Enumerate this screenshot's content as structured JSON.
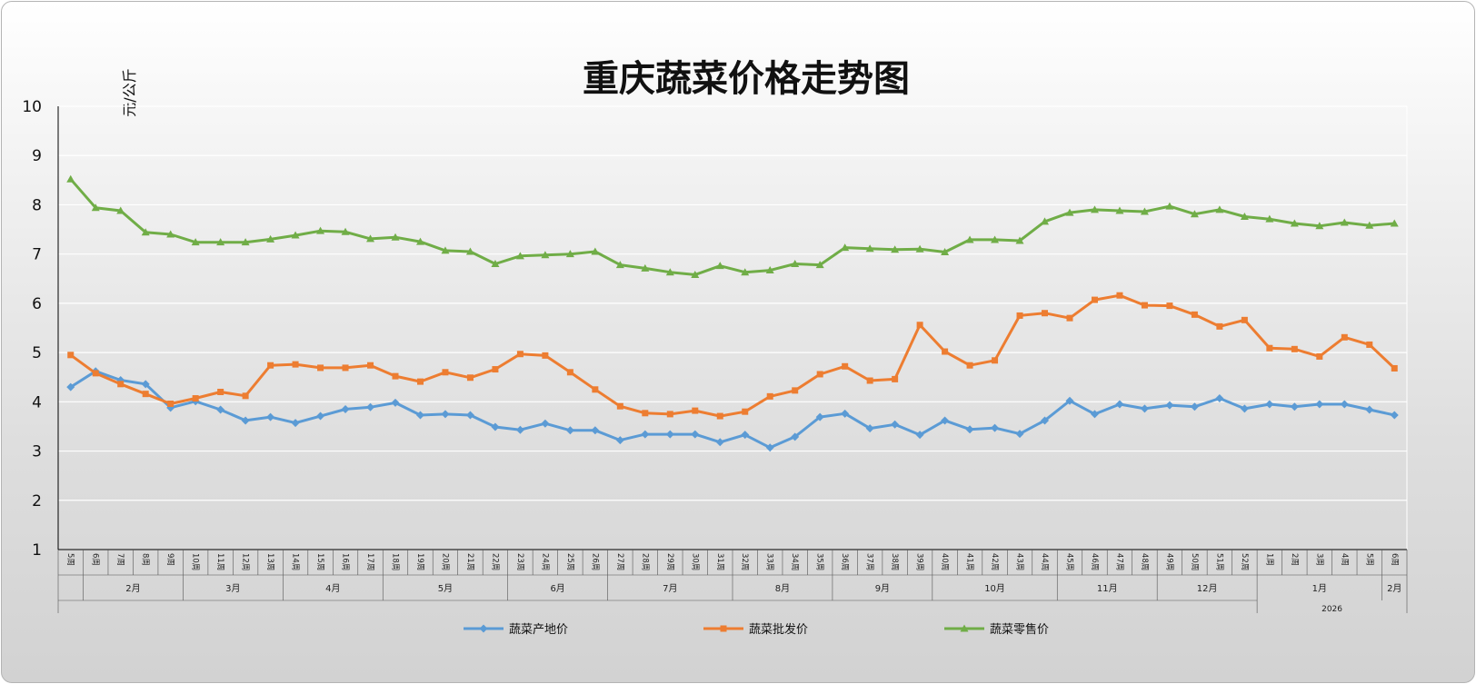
{
  "chart_data": {
    "type": "line",
    "title": "重庆蔬菜价格走势图",
    "ylabel": "元/公斤",
    "xlabel": "",
    "ylim": [
      1,
      10
    ],
    "yticks": [
      1,
      2,
      3,
      4,
      5,
      6,
      7,
      8,
      9,
      10
    ],
    "grid": true,
    "legend_position": "bottom",
    "weeks": [
      "5周",
      "6周",
      "7周",
      "8周",
      "9周",
      "10周",
      "11周",
      "12周",
      "13周",
      "14周",
      "15周",
      "16周",
      "17周",
      "18周",
      "19周",
      "20周",
      "21周",
      "22周",
      "23周",
      "24周",
      "25周",
      "26周",
      "27周",
      "28周",
      "29周",
      "30周",
      "31周",
      "32周",
      "33周",
      "34周",
      "35周",
      "36周",
      "37周",
      "38周",
      "39周",
      "40周",
      "41周",
      "42周",
      "43周",
      "44周",
      "45周",
      "46周",
      "47周",
      "48周",
      "49周",
      "50周",
      "51周",
      "52周",
      "1周",
      "2周",
      "3周",
      "4周",
      "5周",
      "6周"
    ],
    "months": [
      {
        "label": "2月",
        "start": 1,
        "end": 4
      },
      {
        "label": "3月",
        "start": 5,
        "end": 8
      },
      {
        "label": "4月",
        "start": 9,
        "end": 12
      },
      {
        "label": "5月",
        "start": 13,
        "end": 17
      },
      {
        "label": "6月",
        "start": 18,
        "end": 21
      },
      {
        "label": "7月",
        "start": 22,
        "end": 26
      },
      {
        "label": "8月",
        "start": 27,
        "end": 30
      },
      {
        "label": "9月",
        "start": 31,
        "end": 34
      },
      {
        "label": "10月",
        "start": 35,
        "end": 39
      },
      {
        "label": "11月",
        "start": 40,
        "end": 43
      },
      {
        "label": "12月",
        "start": 44,
        "end": 47
      },
      {
        "label": "1月",
        "start": 48,
        "end": 52
      },
      {
        "label": "2月",
        "start": 53,
        "end": 53
      }
    ],
    "years": [
      {
        "label": "2026",
        "start": 48,
        "end": 53
      }
    ],
    "series": [
      {
        "name": "蔬菜产地价",
        "color": "#5b9bd5",
        "marker": "diamond",
        "values": [
          4.3,
          4.62,
          4.44,
          4.36,
          3.88,
          4.01,
          3.84,
          3.62,
          3.69,
          3.57,
          3.71,
          3.85,
          3.89,
          3.98,
          3.73,
          3.75,
          3.73,
          3.49,
          3.43,
          3.56,
          3.42,
          3.42,
          3.22,
          3.34,
          3.34,
          3.34,
          3.18,
          3.33,
          3.07,
          3.29,
          3.69,
          3.76,
          3.46,
          3.54,
          3.33,
          3.62,
          3.44,
          3.47,
          3.35,
          3.62,
          4.02,
          3.75,
          3.95,
          3.86,
          3.93,
          3.9,
          4.07,
          3.86,
          3.95,
          3.9,
          3.95,
          3.95,
          3.84,
          3.73
        ]
      },
      {
        "name": "蔬菜批发价",
        "color": "#ed7d31",
        "marker": "square",
        "values": [
          4.95,
          4.58,
          4.36,
          4.16,
          3.96,
          4.07,
          4.2,
          4.12,
          4.74,
          4.76,
          4.69,
          4.69,
          4.74,
          4.52,
          4.41,
          4.6,
          4.49,
          4.66,
          4.97,
          4.94,
          4.6,
          4.25,
          3.91,
          3.77,
          3.75,
          3.82,
          3.71,
          3.8,
          4.11,
          4.23,
          4.56,
          4.72,
          4.43,
          4.46,
          5.56,
          5.02,
          4.74,
          4.84,
          5.75,
          5.8,
          5.7,
          6.07,
          6.16,
          5.96,
          5.95,
          5.77,
          5.53,
          5.66,
          5.09,
          5.07,
          4.92,
          5.31,
          5.16,
          4.68
        ]
      },
      {
        "name": "蔬菜零售价",
        "color": "#70ad47",
        "marker": "triangle",
        "values": [
          8.52,
          7.94,
          7.88,
          7.44,
          7.4,
          7.24,
          7.24,
          7.24,
          7.3,
          7.38,
          7.47,
          7.45,
          7.31,
          7.34,
          7.25,
          7.07,
          7.05,
          6.8,
          6.96,
          6.98,
          7.0,
          7.05,
          6.78,
          6.71,
          6.63,
          6.58,
          6.76,
          6.63,
          6.67,
          6.8,
          6.78,
          7.13,
          7.11,
          7.09,
          7.1,
          7.04,
          7.29,
          7.29,
          7.27,
          7.66,
          7.84,
          7.9,
          7.88,
          7.86,
          7.97,
          7.81,
          7.9,
          7.76,
          7.71,
          7.62,
          7.57,
          7.64,
          7.58,
          7.62
        ]
      }
    ]
  }
}
